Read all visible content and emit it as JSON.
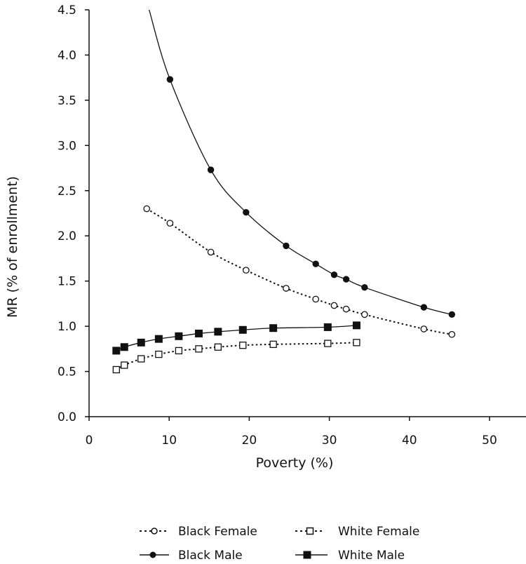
{
  "chart_data": {
    "type": "line",
    "xlabel": "Poverty (%)",
    "ylabel": "MR (% of enrollment)",
    "xlim": [
      0,
      55
    ],
    "ylim": [
      0,
      4.5
    ],
    "x_ticks": [
      "0",
      "10",
      "20",
      "30",
      "40",
      "50"
    ],
    "y_ticks": [
      "0.0",
      "0.5",
      "1.0",
      "1.5",
      "2.0",
      "2.5",
      "3.0",
      "3.5",
      "4.0",
      "4.5"
    ],
    "series": [
      {
        "name": "Black Female",
        "line": "dotted",
        "marker": "open-circle",
        "color": "#111111",
        "x": [
          7.2,
          10.1,
          15.2,
          19.6,
          24.6,
          28.3,
          30.6,
          32.1,
          34.4,
          41.8,
          45.3
        ],
        "y": [
          2.3,
          2.14,
          1.82,
          1.62,
          1.42,
          1.3,
          1.23,
          1.19,
          1.13,
          0.97,
          0.91
        ]
      },
      {
        "name": "White Female",
        "line": "dotted",
        "marker": "open-square",
        "color": "#111111",
        "x": [
          3.4,
          4.4,
          6.5,
          8.7,
          11.2,
          13.7,
          16.1,
          19.2,
          23.0,
          29.8,
          33.4
        ],
        "y": [
          0.52,
          0.57,
          0.64,
          0.69,
          0.73,
          0.75,
          0.77,
          0.79,
          0.8,
          0.81,
          0.82
        ]
      },
      {
        "name": "Black Male",
        "line": "solid",
        "marker": "filled-circle",
        "color": "#111111",
        "curve_start": [
          7.5,
          4.5
        ],
        "x": [
          10.1,
          15.2,
          19.6,
          24.6,
          28.3,
          30.6,
          32.1,
          34.4,
          41.8,
          45.3
        ],
        "y": [
          3.73,
          2.73,
          2.26,
          1.89,
          1.69,
          1.57,
          1.52,
          1.43,
          1.21,
          1.13
        ]
      },
      {
        "name": "White Male",
        "line": "solid",
        "marker": "filled-square",
        "color": "#111111",
        "x": [
          3.4,
          4.4,
          6.5,
          8.7,
          11.2,
          13.7,
          16.1,
          19.2,
          23.0,
          29.8,
          33.4
        ],
        "y": [
          0.73,
          0.77,
          0.82,
          0.86,
          0.89,
          0.92,
          0.94,
          0.96,
          0.98,
          0.99,
          1.01
        ]
      }
    ],
    "legend": {
      "placement": "bottom",
      "entries": [
        "Black Female",
        "White Female",
        "Black Male",
        "White Male"
      ]
    }
  }
}
